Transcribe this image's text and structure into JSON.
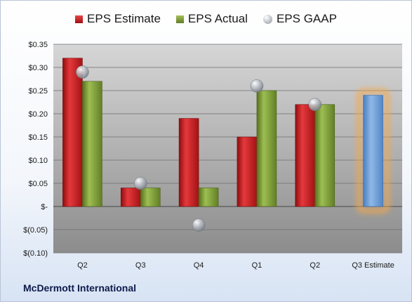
{
  "company_name": "McDermott International",
  "colors": {
    "estimate": "#c8191c",
    "actual": "#7fa03a",
    "gaap": "#b0b5bd",
    "highlight_bar": "#6fa0d8",
    "highlight_glow": "#f5a74a"
  },
  "chart_data": {
    "type": "bar",
    "categories": [
      "Q2",
      "Q3",
      "Q4",
      "Q1",
      "Q2",
      "Q3 Estimate"
    ],
    "series": [
      {
        "name": "EPS Estimate",
        "values": [
          0.32,
          0.04,
          0.19,
          0.15,
          0.22,
          null
        ]
      },
      {
        "name": "EPS Actual",
        "values": [
          0.27,
          0.04,
          0.04,
          0.25,
          0.22,
          0.24
        ]
      },
      {
        "name": "EPS GAAP",
        "values": [
          0.29,
          0.05,
          -0.04,
          0.26,
          0.22,
          null
        ]
      }
    ],
    "ylim": [
      -0.1,
      0.35
    ],
    "yticks": [
      0.35,
      0.3,
      0.25,
      0.2,
      0.15,
      0.1,
      0.05,
      0,
      -0.05,
      -0.1
    ],
    "ytick_labels": [
      "$0.35",
      "$0.30",
      "$0.25",
      "$0.20",
      "$0.15",
      "$0.10",
      "$0.05",
      "$-",
      "$(0.05)",
      "$(0.10)"
    ],
    "highlight_category": "Q3 Estimate",
    "grid": true,
    "legend": "top"
  }
}
